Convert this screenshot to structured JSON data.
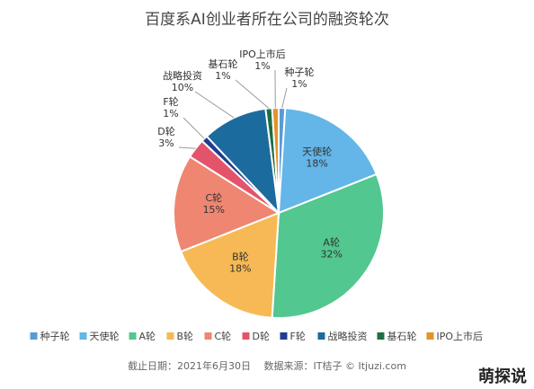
{
  "chart_data": {
    "type": "pie",
    "title": "百度系AI创业者所在公司的融资轮次",
    "slices": [
      {
        "label": "种子轮",
        "value": 1,
        "display": "1%",
        "color": "#5a9bd5"
      },
      {
        "label": "天使轮",
        "value": 18,
        "display": "18%",
        "color": "#64b5e8"
      },
      {
        "label": "A轮",
        "value": 32,
        "display": "32%",
        "color": "#52c78f"
      },
      {
        "label": "B轮",
        "value": 18,
        "display": "18%",
        "color": "#f7b955"
      },
      {
        "label": "C轮",
        "value": 15,
        "display": "15%",
        "color": "#ee8672"
      },
      {
        "label": "D轮",
        "value": 3,
        "display": "3%",
        "color": "#e3546b"
      },
      {
        "label": "F轮",
        "value": 1,
        "display": "1%",
        "color": "#1f3e8f"
      },
      {
        "label": "战略投资",
        "value": 10,
        "display": "10%",
        "color": "#1c6b9e"
      },
      {
        "label": "基石轮",
        "value": 1,
        "display": "1%",
        "color": "#1f6e45"
      },
      {
        "label": "IPO上市后",
        "value": 1,
        "display": "1%",
        "color": "#e3932a"
      }
    ],
    "legend_position": "bottom"
  },
  "caption": {
    "text": "截止日期：2021年6月30日　 数据来源：IT桔子 © Itjuzi.com"
  },
  "watermark": {
    "text": "萌探说"
  }
}
